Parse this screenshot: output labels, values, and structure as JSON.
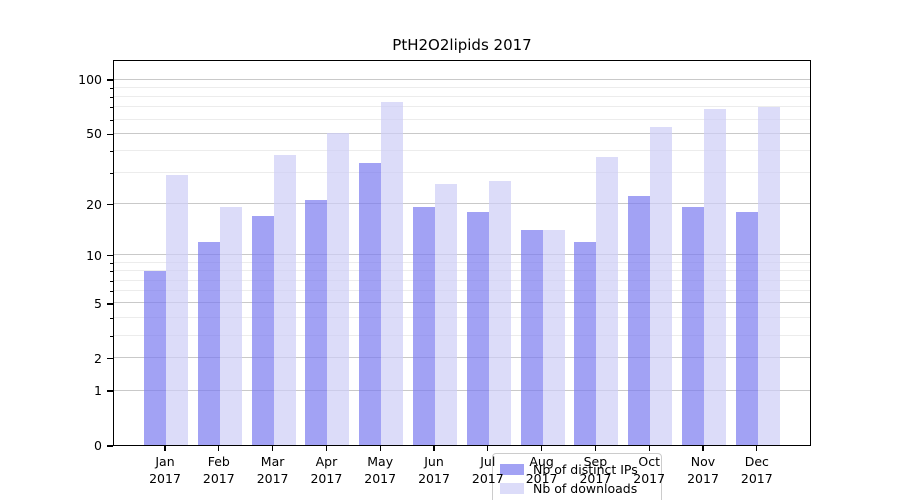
{
  "page": {
    "background": "#ffffff"
  },
  "chart_data": {
    "type": "bar",
    "title": "PtH2O2lipids 2017",
    "categories": [
      "Jan",
      "Feb",
      "Mar",
      "Apr",
      "May",
      "Jun",
      "Jul",
      "Aug",
      "Sep",
      "Oct",
      "Nov",
      "Dec"
    ],
    "category_year": "2017",
    "series": [
      {
        "name": "Nb of distinct IPs",
        "color": "#7b7bef",
        "alpha": 0.7,
        "values": [
          8,
          12,
          17,
          21,
          34,
          19,
          18,
          14,
          12,
          22,
          19,
          18
        ]
      },
      {
        "name": "Nb of downloads",
        "color": "#cdcdf6",
        "alpha": 0.7,
        "values": [
          29,
          19,
          38,
          50,
          75,
          26,
          27,
          14,
          37,
          54,
          68,
          70
        ]
      }
    ],
    "yscale": "log1p",
    "yticks": [
      0,
      1,
      2,
      5,
      10,
      20,
      50,
      100
    ],
    "yticks_minor": [
      3,
      4,
      6,
      7,
      8,
      9,
      30,
      40,
      60,
      70,
      80,
      90
    ],
    "ylim": [
      0,
      127
    ],
    "grid": "horizontal",
    "legend_position": "lower center",
    "colors": {
      "grid_major": "#c9c9c9",
      "grid_minor": "#ececec",
      "spine": "#000000",
      "text": "#000000"
    }
  }
}
